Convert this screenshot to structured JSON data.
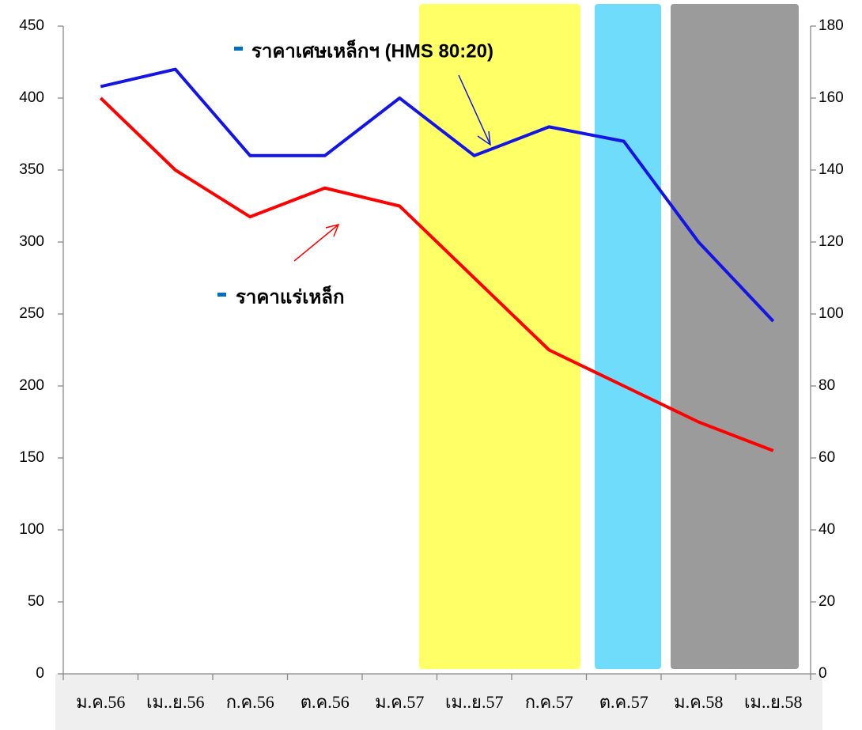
{
  "chart_data": {
    "type": "line",
    "categories": [
      "ม.ค.56",
      "เม..ย.56",
      "ก.ค.56",
      "ต.ค.56",
      "ม.ค.57",
      "เม..ย.57",
      "ก.ค.57",
      "ต.ค.57",
      "ม.ค.58",
      "เม..ย.58"
    ],
    "series": [
      {
        "name": "ราคาเศษเหล็กฯ (HMS 80:20)",
        "color": "#1414e6",
        "values": [
          408,
          420,
          360,
          360,
          400,
          360,
          380,
          370,
          300,
          245
        ]
      },
      {
        "name": "ราคาแร่เหล็ก",
        "color": "#ff0000",
        "axis": "y2",
        "values": [
          160,
          140,
          127,
          135,
          130,
          110,
          90,
          80,
          70,
          62
        ]
      }
    ],
    "ylim": [
      0,
      450
    ],
    "yticks": [
      0,
      50,
      100,
      150,
      200,
      250,
      300,
      350,
      400,
      450
    ],
    "y2lim": [
      0,
      180
    ],
    "y2ticks": [
      0,
      20,
      40,
      60,
      80,
      100,
      120,
      140,
      160,
      180
    ]
  }
}
